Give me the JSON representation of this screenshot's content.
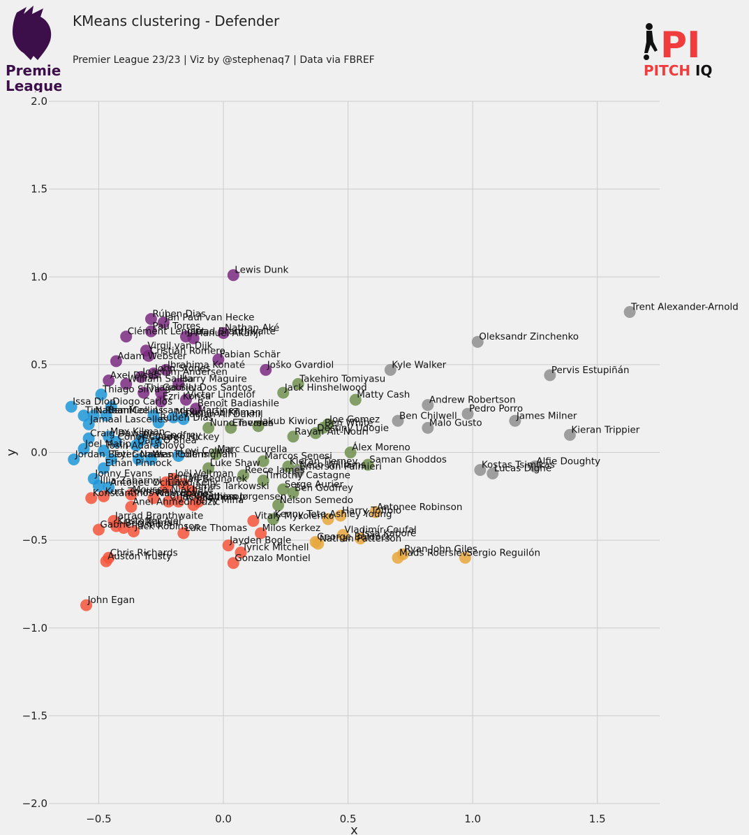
{
  "header": {
    "title": "KMeans clustering - Defender",
    "subtitle": "Premier League 23/23 | Viz by @stephenaq7 | Data via FBREF",
    "league_logo_text_1": "Premier",
    "league_logo_text_2": "League",
    "brand_logo_text_1": "PITCH",
    "brand_logo_text_2": "IQ",
    "brand_logo_mark": "PI"
  },
  "colors": {
    "background": "#f0f0f0",
    "grid": "#cbcbcb",
    "cluster_purple": "#7a2a80",
    "cluster_blue": "#1f97d8",
    "cluster_green": "#70904f",
    "cluster_red": "#f4553b",
    "cluster_orange": "#e8a73c",
    "cluster_gray": "#8f8f8f",
    "brand_red": "#f03c3c",
    "league_purple": "#3d0f4a"
  },
  "chart_data": {
    "type": "scatter",
    "xlabel": "x",
    "ylabel": "y",
    "xlim": [
      -0.7,
      1.75
    ],
    "ylim": [
      -2.0,
      2.0
    ],
    "xticks": [
      -0.5,
      0.0,
      0.5,
      1.0,
      1.5
    ],
    "yticks": [
      -2.0,
      -1.5,
      -1.0,
      -0.5,
      0.0,
      0.5,
      1.0,
      1.5,
      2.0
    ],
    "xtick_labels": [
      "−0.5",
      "0.0",
      "0.5",
      "1.0",
      "1.5"
    ],
    "ytick_labels": [
      "−2.0",
      "−1.5",
      "−1.0",
      "−0.5",
      "0.0",
      "0.5",
      "1.0",
      "1.5",
      "2.0"
    ],
    "grid": true,
    "legend": "none",
    "points": [
      {
        "name": "Lewis Dunk",
        "x": 0.04,
        "y": 1.01,
        "cluster": "purple"
      },
      {
        "name": "Rúben Dias",
        "x": -0.29,
        "y": 0.76,
        "cluster": "purple"
      },
      {
        "name": "Jan Paul van Hecke",
        "x": -0.24,
        "y": 0.74,
        "cluster": "purple"
      },
      {
        "name": "Pau Torres",
        "x": -0.29,
        "y": 0.69,
        "cluster": "purple"
      },
      {
        "name": "Clément Lenglet",
        "x": -0.39,
        "y": 0.66,
        "cluster": "purple"
      },
      {
        "name": "Nathan Aké",
        "x": 0.0,
        "y": 0.68,
        "cluster": "purple"
      },
      {
        "name": "Jarrad Branthwaite",
        "x": -0.15,
        "y": 0.66,
        "cluster": "purple"
      },
      {
        "name": "Manuel Akanji",
        "x": -0.12,
        "y": 0.65,
        "cluster": "purple"
      },
      {
        "name": "Virgil van Dijk",
        "x": -0.31,
        "y": 0.58,
        "cluster": "purple"
      },
      {
        "name": "Cristian Romero",
        "x": -0.3,
        "y": 0.55,
        "cluster": "purple"
      },
      {
        "name": "Fabian Schär",
        "x": -0.02,
        "y": 0.53,
        "cluster": "purple"
      },
      {
        "name": "Adam Webster",
        "x": -0.43,
        "y": 0.52,
        "cluster": "purple"
      },
      {
        "name": "Ibrahima Konaté",
        "x": -0.23,
        "y": 0.47,
        "cluster": "purple"
      },
      {
        "name": "Joško Gvardiol",
        "x": 0.17,
        "y": 0.47,
        "cluster": "purple"
      },
      {
        "name": "John Stones",
        "x": -0.28,
        "y": 0.45,
        "cluster": "purple"
      },
      {
        "name": "Axel Disasi",
        "x": -0.46,
        "y": 0.41,
        "cluster": "purple"
      },
      {
        "name": "Joachim Andersen",
        "x": -0.33,
        "y": 0.43,
        "cluster": "purple"
      },
      {
        "name": "William Saliba",
        "x": -0.39,
        "y": 0.39,
        "cluster": "purple"
      },
      {
        "name": "Harry Maguire",
        "x": -0.18,
        "y": 0.39,
        "cluster": "purple"
      },
      {
        "name": "Thiago Silva",
        "x": -0.32,
        "y": 0.34,
        "cluster": "purple"
      },
      {
        "name": "Gabriel Dos Santos",
        "x": -0.25,
        "y": 0.34,
        "cluster": "purple"
      },
      {
        "name": "Victor Lindelöf",
        "x": -0.15,
        "y": 0.3,
        "cluster": "purple"
      },
      {
        "name": "Ezri Konsa",
        "x": -0.25,
        "y": 0.29,
        "cluster": "purple"
      },
      {
        "name": "Benoît Badiashile",
        "x": -0.11,
        "y": 0.25,
        "cluster": "purple"
      },
      {
        "name": "Issa Diop",
        "x": -0.61,
        "y": 0.26,
        "cluster": "blue"
      },
      {
        "name": "Diogo Carlos",
        "x": -0.45,
        "y": 0.26,
        "cluster": "blue"
      },
      {
        "name": "Thiago Silva",
        "x": -0.49,
        "y": 0.33,
        "cluster": "blue"
      },
      {
        "name": "Tim Ream",
        "x": -0.56,
        "y": 0.21,
        "cluster": "blue"
      },
      {
        "name": "Nathan Collins",
        "x": -0.52,
        "y": 0.21,
        "cluster": "blue"
      },
      {
        "name": "Ben Mee",
        "x": -0.47,
        "y": 0.21,
        "cluster": "blue"
      },
      {
        "name": "Lisandro Martínez",
        "x": -0.28,
        "y": 0.21,
        "cluster": "blue"
      },
      {
        "name": "Maximilian Kilman",
        "x": -0.2,
        "y": 0.2,
        "cluster": "blue"
      },
      {
        "name": "Jamaal Lascelles",
        "x": -0.54,
        "y": 0.16,
        "cluster": "blue"
      },
      {
        "name": "Ruben Dias",
        "x": -0.26,
        "y": 0.17,
        "cluster": "blue"
      },
      {
        "name": "Fabian Ali Dakhil",
        "x": -0.16,
        "y": 0.19,
        "cluster": "blue"
      },
      {
        "name": "Craig Dawson",
        "x": -0.54,
        "y": 0.08,
        "cluster": "blue"
      },
      {
        "name": "Max Kilman",
        "x": -0.46,
        "y": 0.09,
        "cluster": "blue"
      },
      {
        "name": "Conor Coady",
        "x": -0.43,
        "y": 0.06,
        "cluster": "blue"
      },
      {
        "name": "Ben Godfrey",
        "x": -0.33,
        "y": 0.07,
        "cluster": "blue"
      },
      {
        "name": "Aaron Hickey",
        "x": -0.27,
        "y": 0.06,
        "cluster": "blue"
      },
      {
        "name": "Joel Matip",
        "x": -0.56,
        "y": 0.02,
        "cluster": "blue"
      },
      {
        "name": "Tosin Adarabioyo",
        "x": -0.48,
        "y": 0.01,
        "cluster": "blue"
      },
      {
        "name": "Jordan Beyer",
        "x": -0.6,
        "y": -0.04,
        "cluster": "blue"
      },
      {
        "name": "Toti Gomes",
        "x": -0.45,
        "y": -0.04,
        "cluster": "blue"
      },
      {
        "name": "Ethan Pinnock",
        "x": -0.48,
        "y": -0.09,
        "cluster": "blue"
      },
      {
        "name": "Levi Colwill",
        "x": -0.18,
        "y": -0.02,
        "cluster": "blue"
      },
      {
        "name": "Nathan Collins",
        "x": -0.34,
        "y": -0.04,
        "cluster": "blue"
      },
      {
        "name": "Wes Foderingham",
        "x": -0.29,
        "y": -0.04,
        "cluster": "blue"
      },
      {
        "name": "Jonny Evans",
        "x": -0.52,
        "y": -0.15,
        "cluster": "blue"
      },
      {
        "name": "Illia Zabarnyi",
        "x": -0.5,
        "y": -0.19,
        "cluster": "blue"
      },
      {
        "name": "Antonee Ochuko",
        "x": -0.46,
        "y": -0.2,
        "cluster": "blue"
      },
      {
        "name": "Dara O'Shea",
        "x": -0.35,
        "y": 0.04,
        "cluster": "blue"
      },
      {
        "name": "Marc Cucurella",
        "x": -0.03,
        "y": -0.01,
        "cluster": "green"
      },
      {
        "name": "Luke Shaw",
        "x": -0.06,
        "y": -0.09,
        "cluster": "green"
      },
      {
        "name": "Matty Cash",
        "x": 0.53,
        "y": 0.3,
        "cluster": "green"
      },
      {
        "name": "Takehiro Tomiyasu",
        "x": 0.3,
        "y": 0.39,
        "cluster": "green"
      },
      {
        "name": "Jack Hinshelwood",
        "x": 0.24,
        "y": 0.34,
        "cluster": "green"
      },
      {
        "name": "Nuno Tavares",
        "x": -0.06,
        "y": 0.14,
        "cluster": "green"
      },
      {
        "name": "Emerson",
        "x": 0.03,
        "y": 0.14,
        "cluster": "green"
      },
      {
        "name": "Jakub Kiwior",
        "x": 0.14,
        "y": 0.15,
        "cluster": "green"
      },
      {
        "name": "Joe Gomez",
        "x": 0.42,
        "y": 0.16,
        "cluster": "green"
      },
      {
        "name": "Ben White",
        "x": 0.4,
        "y": 0.14,
        "cluster": "green"
      },
      {
        "name": "Rayan Aït-Nouri",
        "x": 0.28,
        "y": 0.09,
        "cluster": "green"
      },
      {
        "name": "Destiny Udogie",
        "x": 0.37,
        "y": 0.11,
        "cluster": "green"
      },
      {
        "name": "Álex Moreno",
        "x": 0.51,
        "y": 0.0,
        "cluster": "green"
      },
      {
        "name": "Saman Ghoddos",
        "x": 0.58,
        "y": -0.07,
        "cluster": "green"
      },
      {
        "name": "Marcos Senesi",
        "x": 0.16,
        "y": -0.05,
        "cluster": "green"
      },
      {
        "name": "Kieran Tierney",
        "x": 0.26,
        "y": -0.08,
        "cluster": "green"
      },
      {
        "name": "Reece James",
        "x": 0.08,
        "y": -0.13,
        "cluster": "green"
      },
      {
        "name": "Timothy Castagne",
        "x": 0.16,
        "y": -0.16,
        "cluster": "green"
      },
      {
        "name": "Neco Williams",
        "x": 0.3,
        "y": -0.1,
        "cluster": "green"
      },
      {
        "name": "Serge Aurier",
        "x": 0.24,
        "y": -0.21,
        "cluster": "green"
      },
      {
        "name": "Ben Godfrey",
        "x": 0.28,
        "y": -0.23,
        "cluster": "green"
      },
      {
        "name": "Nélson Semedo",
        "x": 0.22,
        "y": -0.3,
        "cluster": "green"
      },
      {
        "name": "Kenny Tete",
        "x": 0.2,
        "y": -0.38,
        "cluster": "green"
      },
      {
        "name": "Joël Veltman",
        "x": -0.2,
        "y": -0.15,
        "cluster": "red"
      },
      {
        "name": "Ben Mee",
        "x": -0.23,
        "y": -0.17,
        "cluster": "red"
      },
      {
        "name": "Jan Bednarek",
        "x": -0.16,
        "y": -0.18,
        "cluster": "red"
      },
      {
        "name": "Lloyd Kelly",
        "x": -0.23,
        "y": -0.2,
        "cluster": "red"
      },
      {
        "name": "James Tarkowski",
        "x": -0.13,
        "y": -0.22,
        "cluster": "red"
      },
      {
        "name": "Kurt Zouma",
        "x": -0.48,
        "y": -0.25,
        "cluster": "red"
      },
      {
        "name": "Konstantinos Mavropanos",
        "x": -0.53,
        "y": -0.26,
        "cluster": "red"
      },
      {
        "name": "Moussa Niakhaté",
        "x": -0.37,
        "y": -0.24,
        "cluster": "red"
      },
      {
        "name": "Anel Ahmedhodžić",
        "x": -0.37,
        "y": -0.31,
        "cluster": "red"
      },
      {
        "name": "Willy Boly",
        "x": -0.28,
        "y": -0.26,
        "cluster": "red"
      },
      {
        "name": "Chris Mepham",
        "x": -0.22,
        "y": -0.28,
        "cluster": "red"
      },
      {
        "name": "Jack Robinson",
        "x": -0.18,
        "y": -0.28,
        "cluster": "red"
      },
      {
        "name": "Yerry Mina",
        "x": -0.12,
        "y": -0.3,
        "cluster": "red"
      },
      {
        "name": "Jarrad Branthwaite",
        "x": -0.44,
        "y": -0.39,
        "cluster": "red"
      },
      {
        "name": "Kristoffer Ajer",
        "x": -0.43,
        "y": -0.42,
        "cluster": "red"
      },
      {
        "name": "Ben Kilman",
        "x": -0.4,
        "y": -0.43,
        "cluster": "red"
      },
      {
        "name": "Gabriel Osho",
        "x": -0.5,
        "y": -0.44,
        "cluster": "red"
      },
      {
        "name": "Jack Robinson",
        "x": -0.36,
        "y": -0.45,
        "cluster": "red"
      },
      {
        "name": "Luke Thomas",
        "x": -0.16,
        "y": -0.46,
        "cluster": "red"
      },
      {
        "name": "Vitaly Mykolenko",
        "x": 0.12,
        "y": -0.39,
        "cluster": "red"
      },
      {
        "name": "Milos Kerkez",
        "x": 0.15,
        "y": -0.46,
        "cluster": "red"
      },
      {
        "name": "Jayden Bogle",
        "x": 0.02,
        "y": -0.53,
        "cluster": "red"
      },
      {
        "name": "Tyrick Mitchell",
        "x": 0.07,
        "y": -0.57,
        "cluster": "red"
      },
      {
        "name": "Gonzalo Montiel",
        "x": 0.04,
        "y": -0.63,
        "cluster": "red"
      },
      {
        "name": "Chris Richards",
        "x": -0.46,
        "y": -0.6,
        "cluster": "red"
      },
      {
        "name": "Auston Trusty",
        "x": -0.47,
        "y": -0.62,
        "cluster": "red"
      },
      {
        "name": "John Egan",
        "x": -0.55,
        "y": -0.87,
        "cluster": "red"
      },
      {
        "name": "Mathias Jørgensen",
        "x": -0.1,
        "y": -0.28,
        "cluster": "red"
      },
      {
        "name": "Antonee Robinson",
        "x": 0.61,
        "y": -0.34,
        "cluster": "orange"
      },
      {
        "name": "Harry Toffolo",
        "x": 0.47,
        "y": -0.36,
        "cluster": "orange"
      },
      {
        "name": "Ashley Young",
        "x": 0.42,
        "y": -0.38,
        "cluster": "orange"
      },
      {
        "name": "George Baldock",
        "x": 0.37,
        "y": -0.51,
        "cluster": "orange"
      },
      {
        "name": "Vladimír Coufal",
        "x": 0.48,
        "y": -0.47,
        "cluster": "orange"
      },
      {
        "name": "Issa Kaboré",
        "x": 0.55,
        "y": -0.49,
        "cluster": "orange"
      },
      {
        "name": "Nathan Patterson",
        "x": 0.38,
        "y": -0.52,
        "cluster": "orange"
      },
      {
        "name": "Ryan John Giles",
        "x": 0.72,
        "y": -0.58,
        "cluster": "orange"
      },
      {
        "name": "Mads Roerslev",
        "x": 0.7,
        "y": -0.6,
        "cluster": "orange"
      },
      {
        "name": "Sergio Reguilón",
        "x": 0.97,
        "y": -0.6,
        "cluster": "orange"
      },
      {
        "name": "Trent Alexander-Arnold",
        "x": 1.63,
        "y": 0.8,
        "cluster": "gray"
      },
      {
        "name": "Oleksandr Zinchenko",
        "x": 1.02,
        "y": 0.63,
        "cluster": "gray"
      },
      {
        "name": "Kyle Walker",
        "x": 0.67,
        "y": 0.47,
        "cluster": "gray"
      },
      {
        "name": "Pervis Estupiñán",
        "x": 1.31,
        "y": 0.44,
        "cluster": "gray"
      },
      {
        "name": "Andrew Robertson",
        "x": 0.82,
        "y": 0.27,
        "cluster": "gray"
      },
      {
        "name": "Pedro Porro",
        "x": 0.98,
        "y": 0.22,
        "cluster": "gray"
      },
      {
        "name": "Ben Chilwell",
        "x": 0.7,
        "y": 0.18,
        "cluster": "gray"
      },
      {
        "name": "James Milner",
        "x": 1.17,
        "y": 0.18,
        "cluster": "gray"
      },
      {
        "name": "Malo Gusto",
        "x": 0.82,
        "y": 0.14,
        "cluster": "gray"
      },
      {
        "name": "Kieran Trippier",
        "x": 1.39,
        "y": 0.1,
        "cluster": "gray"
      },
      {
        "name": "Kostas Tsimikas",
        "x": 1.03,
        "y": -0.1,
        "cluster": "gray"
      },
      {
        "name": "Lucas Digne",
        "x": 1.08,
        "y": -0.12,
        "cluster": "gray"
      },
      {
        "name": "Alfie Doughty",
        "x": 1.25,
        "y": -0.08,
        "cluster": "gray"
      },
      {
        "name": "Emerson Palmieri",
        "x": 0.3,
        "y": -0.11,
        "cluster": "gray"
      }
    ]
  }
}
